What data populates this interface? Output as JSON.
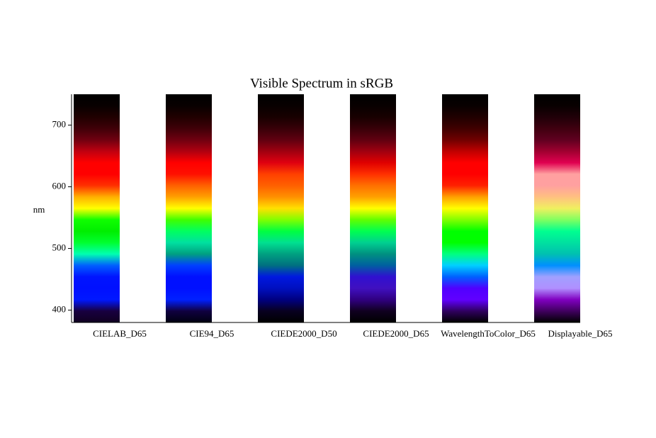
{
  "chart_data": {
    "type": "spectrum",
    "title": "Visible Spectrum in sRGB",
    "ylabel": "nm",
    "categories": [
      "CIELAB_D65",
      "CIE94_D65",
      "CIEDE2000_D50",
      "CIEDE2000_D65",
      "WavelengthToColor_D65",
      "Displayable_D65"
    ],
    "ylim": [
      380,
      750
    ],
    "yticks": [
      400,
      500,
      600,
      700
    ],
    "colors": [
      [
        "#100020",
        "#180040",
        "#0018ff",
        "#0010ff",
        "#0014ff",
        "#0060ff",
        "#00ffb0",
        "#00ff30",
        "#00ee00",
        "#10ff00",
        "#ffff00",
        "#ffb000",
        "#ff3000",
        "#ff0000",
        "#ff0000",
        "#c00010",
        "#700010",
        "#400008",
        "#200000",
        "#080000",
        "#000000"
      ],
      [
        "#000010",
        "#100040",
        "#0020ff",
        "#0010ff",
        "#0010ff",
        "#0040ff",
        "#00a080",
        "#00e0a0",
        "#00ff60",
        "#40ff00",
        "#ffff00",
        "#ffa000",
        "#ff6000",
        "#ff1000",
        "#ff0000",
        "#b00010",
        "#700010",
        "#400008",
        "#200000",
        "#080000",
        "#000000"
      ],
      [
        "#000000",
        "#080020",
        "#000080",
        "#0010c0",
        "#0018e0",
        "#007080",
        "#00a080",
        "#00e090",
        "#00ff40",
        "#80ff00",
        "#ffe000",
        "#ff9000",
        "#ff6000",
        "#ff4000",
        "#e00010",
        "#a00010",
        "#600010",
        "#380008",
        "#180000",
        "#080000",
        "#000000"
      ],
      [
        "#000000",
        "#100020",
        "#300080",
        "#4010c0",
        "#3010d0",
        "#0060a0",
        "#009080",
        "#00d090",
        "#00ff50",
        "#60ff00",
        "#ffff00",
        "#ffa000",
        "#ff7000",
        "#ff3000",
        "#e00000",
        "#a00010",
        "#600010",
        "#380008",
        "#180000",
        "#080000",
        "#000000"
      ],
      [
        "#000000",
        "#300060",
        "#6000ff",
        "#5000ff",
        "#0060ff",
        "#00d0ff",
        "#00ff80",
        "#00ff00",
        "#00ff00",
        "#80ff00",
        "#ffff00",
        "#ffa000",
        "#ff2000",
        "#ff0000",
        "#ff0000",
        "#c00000",
        "#700000",
        "#400000",
        "#200000",
        "#080000",
        "#000000"
      ],
      [
        "#000000",
        "#400060",
        "#8000c0",
        "#b090ff",
        "#a0a0ff",
        "#0090ff",
        "#00c0b0",
        "#00e0a0",
        "#00ff90",
        "#80ff60",
        "#f0f060",
        "#ffc080",
        "#ffa0a0",
        "#ffa0a0",
        "#e00050",
        "#a00030",
        "#600020",
        "#400010",
        "#200008",
        "#080000",
        "#000000"
      ]
    ]
  }
}
